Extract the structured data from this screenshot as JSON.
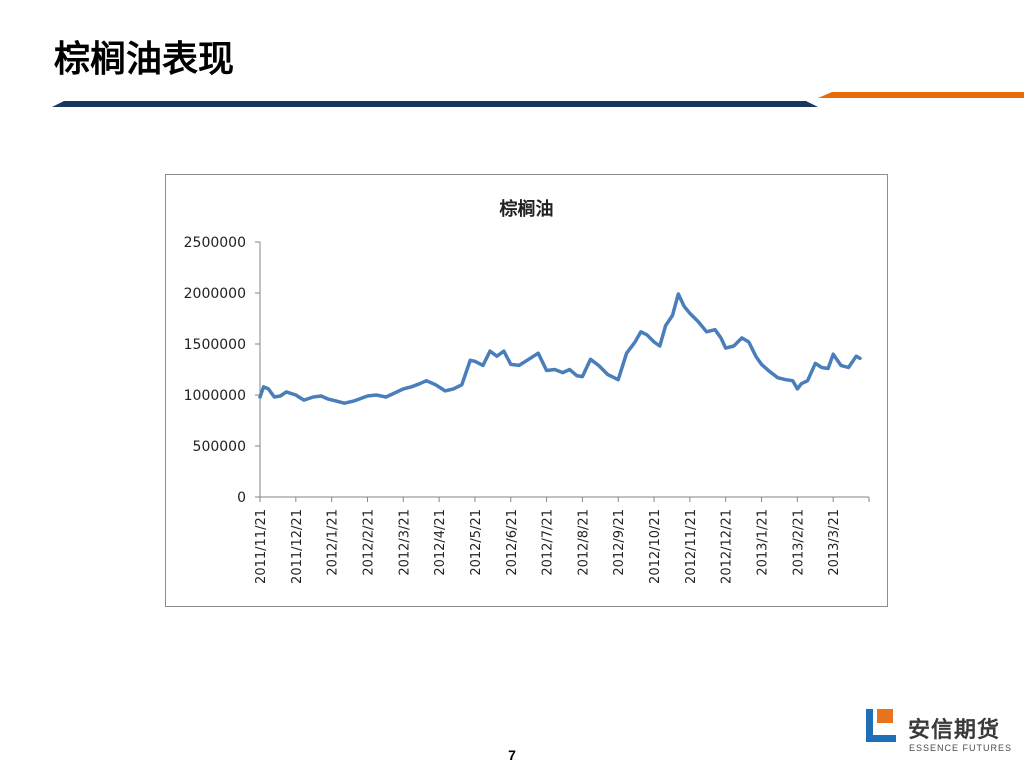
{
  "slide": {
    "title": "棕榈油表现",
    "page_number": "7",
    "accent_colors": {
      "navy": "#17375e",
      "orange": "#e46c0a"
    }
  },
  "logo": {
    "icon": "essence-futures-logo-icon",
    "name_cn": "安信期货",
    "name_en": "ESSENCE FUTURES",
    "colors": {
      "blue": "#1f6fb6",
      "orange": "#e8741e"
    }
  },
  "chart_data": {
    "type": "line",
    "title": "棕榈油",
    "xlabel": "",
    "ylabel": "",
    "ylim": [
      0,
      2500000
    ],
    "y_ticks": [
      "0",
      "500000",
      "1000000",
      "1500000",
      "2000000",
      "2500000"
    ],
    "x_tick_labels": [
      "2011/11/21",
      "2011/12/21",
      "2012/1/21",
      "2012/2/21",
      "2012/3/21",
      "2012/4/21",
      "2012/5/21",
      "2012/6/21",
      "2012/7/21",
      "2012/8/21",
      "2012/9/21",
      "2012/10/21",
      "2012/11/21",
      "2012/12/21",
      "2013/1/21",
      "2013/2/21",
      "2013/3/21"
    ],
    "grid": false,
    "legend": "none",
    "series": [
      {
        "name": "",
        "color": "#4a7ebb",
        "x": [
          "2011/11/21",
          "2011/11/24",
          "2011/11/28",
          "2011/12/3",
          "2011/12/8",
          "2011/12/13",
          "2011/12/21",
          "2011/12/28",
          "2012/1/5",
          "2012/1/12",
          "2012/1/18",
          "2012/1/25",
          "2012/2/1",
          "2012/2/9",
          "2012/2/16",
          "2012/2/21",
          "2012/2/28",
          "2012/3/7",
          "2012/3/14",
          "2012/3/21",
          "2012/3/28",
          "2012/4/4",
          "2012/4/10",
          "2012/4/18",
          "2012/4/26",
          "2012/5/3",
          "2012/5/10",
          "2012/5/17",
          "2012/5/21",
          "2012/5/28",
          "2012/6/3",
          "2012/6/9",
          "2012/6/15",
          "2012/6/21",
          "2012/6/28",
          "2012/7/6",
          "2012/7/14",
          "2012/7/21",
          "2012/7/28",
          "2012/8/4",
          "2012/8/10",
          "2012/8/16",
          "2012/8/21",
          "2012/8/28",
          "2012/9/4",
          "2012/9/12",
          "2012/9/21",
          "2012/9/28",
          "2012/10/5",
          "2012/10/10",
          "2012/10/15",
          "2012/10/21",
          "2012/10/26",
          "2012/10/31",
          "2012/11/6",
          "2012/11/11",
          "2012/11/16",
          "2012/11/21",
          "2012/11/28",
          "2012/12/5",
          "2012/12/12",
          "2012/12/17",
          "2012/12/21",
          "2012/12/28",
          "2013/1/4",
          "2013/1/10",
          "2013/1/16",
          "2013/1/21",
          "2013/1/28",
          "2013/2/4",
          "2013/2/11",
          "2013/2/17",
          "2013/2/21",
          "2013/2/24",
          "2013/3/1",
          "2013/3/7",
          "2013/3/12",
          "2013/3/17",
          "2013/3/21",
          "2013/3/27",
          "2013/4/2",
          "2013/4/8",
          "2013/4/11"
        ],
        "values": [
          980000,
          1080000,
          1060000,
          980000,
          990000,
          1030000,
          1000000,
          950000,
          980000,
          990000,
          960000,
          940000,
          920000,
          940000,
          970000,
          990000,
          1000000,
          980000,
          1020000,
          1060000,
          1080000,
          1110000,
          1140000,
          1100000,
          1040000,
          1060000,
          1100000,
          1340000,
          1330000,
          1290000,
          1430000,
          1380000,
          1430000,
          1300000,
          1290000,
          1350000,
          1410000,
          1240000,
          1250000,
          1220000,
          1250000,
          1190000,
          1180000,
          1350000,
          1290000,
          1200000,
          1150000,
          1410000,
          1520000,
          1620000,
          1590000,
          1520000,
          1480000,
          1680000,
          1780000,
          1990000,
          1870000,
          1800000,
          1720000,
          1620000,
          1640000,
          1560000,
          1460000,
          1480000,
          1560000,
          1520000,
          1380000,
          1300000,
          1230000,
          1170000,
          1150000,
          1140000,
          1060000,
          1110000,
          1140000,
          1310000,
          1270000,
          1260000,
          1400000,
          1290000,
          1270000,
          1380000,
          1360000
        ]
      }
    ]
  }
}
